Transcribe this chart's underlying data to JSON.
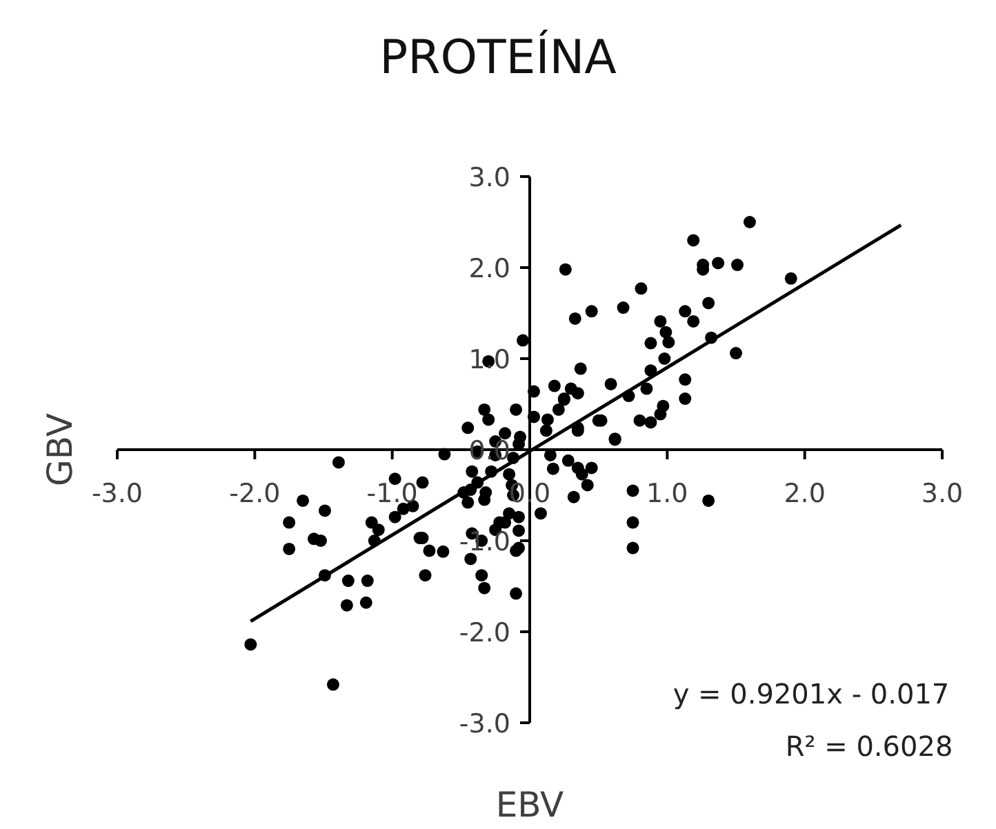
{
  "chart_data": {
    "type": "scatter",
    "title": "PROTEÍNA",
    "xlabel": "EBV",
    "ylabel": "GBV",
    "xlim": [
      -3,
      3
    ],
    "ylim": [
      -3,
      3
    ],
    "xticks": [
      {
        "value": -3,
        "label": "-3.0"
      },
      {
        "value": -2,
        "label": "-2.0"
      },
      {
        "value": -1,
        "label": "-1.0"
      },
      {
        "value": 0,
        "label": "0.0"
      },
      {
        "value": 1,
        "label": "1.0"
      },
      {
        "value": 2,
        "label": "2.0"
      },
      {
        "value": 3,
        "label": "3.0"
      }
    ],
    "yticks": [
      {
        "value": -3,
        "label": "-3.0"
      },
      {
        "value": -2,
        "label": "-2.0"
      },
      {
        "value": -1,
        "label": "-1.0"
      },
      {
        "value": 0,
        "label": "0.0"
      },
      {
        "value": 1,
        "label": "1.0"
      },
      {
        "value": 2,
        "label": "2.0"
      },
      {
        "value": 3,
        "label": "3.0"
      }
    ],
    "marker": "circle",
    "grid": false,
    "legend": false,
    "annotations": [
      "y = 0.9201x - 0.017",
      "R² = 0.6028"
    ],
    "series": [
      {
        "color": "#000000",
        "x": [
          0.26,
          1.6,
          1.19,
          1.26,
          1.26,
          1.37,
          1.51,
          1.9,
          0.33,
          0.45,
          0.68,
          0.81,
          1.3,
          1.13,
          1.19,
          0.95,
          0.99,
          1.01,
          0.88,
          1.32,
          1.5,
          0.98,
          0.88,
          0.37,
          0.59,
          1.13,
          1.13,
          0.85,
          0.72,
          0.35,
          0.25,
          0.18,
          0.97,
          0.95,
          0.8,
          0.88,
          0.5,
          0.35,
          0.62,
          0.21,
          -0.05,
          -0.3,
          0.03,
          0.3,
          0.25,
          -0.1,
          -0.33,
          -0.3,
          0.03,
          0.13,
          -0.45,
          -0.18,
          -0.07,
          0.12,
          0.35,
          0.52,
          0.62,
          -0.25,
          -0.08,
          -0.62,
          -0.38,
          -0.25,
          -0.12,
          0.15,
          0.28,
          0.35,
          0.38,
          0.45,
          0.42,
          0.17,
          -0.42,
          -0.28,
          -0.15,
          -0.38,
          -0.13,
          -0.48,
          -0.32,
          -0.78,
          -0.45,
          -0.12,
          0.32,
          0.08,
          0.75,
          0.75,
          0.75,
          -0.08,
          -0.18,
          -0.25,
          -0.42,
          -0.35,
          -0.08,
          -0.78,
          -0.73,
          -0.63,
          -0.43,
          -0.08,
          -1.39,
          -0.98,
          -1.65,
          -1.49,
          -1.75,
          -1.15,
          -1.1,
          -0.98,
          -0.92,
          -0.85,
          -1.57,
          -1.52,
          -1.75,
          -1.13,
          -0.8,
          -1.49,
          -1.32,
          -1.18,
          -1.33,
          -1.19,
          -0.76,
          -0.35,
          -0.33,
          -0.1,
          -0.1,
          -2.03,
          -1.43,
          -0.43,
          -0.33,
          -0.22,
          -0.15,
          1.3
        ],
        "values": [
          1.98,
          2.5,
          2.3,
          2.03,
          1.98,
          2.05,
          2.03,
          1.88,
          1.44,
          1.52,
          1.56,
          1.77,
          1.61,
          1.52,
          1.41,
          1.41,
          1.29,
          1.18,
          1.17,
          1.23,
          1.06,
          1.0,
          0.87,
          0.89,
          0.72,
          0.77,
          0.56,
          0.67,
          0.59,
          0.62,
          0.56,
          0.7,
          0.48,
          0.39,
          0.32,
          0.3,
          0.32,
          0.21,
          0.12,
          0.44,
          1.2,
          0.97,
          0.64,
          0.67,
          0.55,
          0.44,
          0.44,
          0.33,
          0.36,
          0.33,
          0.24,
          0.18,
          0.14,
          0.21,
          0.24,
          0.32,
          0.11,
          0.09,
          0.06,
          -0.05,
          -0.02,
          -0.06,
          -0.09,
          -0.06,
          -0.12,
          -0.2,
          -0.27,
          -0.2,
          -0.39,
          -0.21,
          -0.24,
          -0.24,
          -0.27,
          -0.36,
          -0.39,
          -0.47,
          -0.47,
          -0.36,
          -0.58,
          -0.5,
          -0.52,
          -0.7,
          -0.45,
          -0.8,
          -1.08,
          -0.74,
          -0.8,
          -0.88,
          -0.92,
          -1.0,
          -0.89,
          -0.97,
          -1.11,
          -1.12,
          -1.2,
          -1.08,
          -0.14,
          -0.32,
          -0.56,
          -0.67,
          -0.8,
          -0.8,
          -0.88,
          -0.74,
          -0.65,
          -0.62,
          -0.98,
          -1.0,
          -1.09,
          -1.0,
          -0.97,
          -1.38,
          -1.44,
          -1.44,
          -1.71,
          -1.68,
          -1.38,
          -1.38,
          -1.52,
          -1.58,
          -1.11,
          -2.14,
          -2.58,
          -0.44,
          -0.55,
          -0.8,
          -0.7,
          -0.56
        ]
      },
      {
        "type": "line",
        "color": "#000000",
        "marker": "none",
        "x": [
          -2.03,
          2.7
        ],
        "values": [
          -1.885,
          2.467
        ]
      }
    ]
  }
}
